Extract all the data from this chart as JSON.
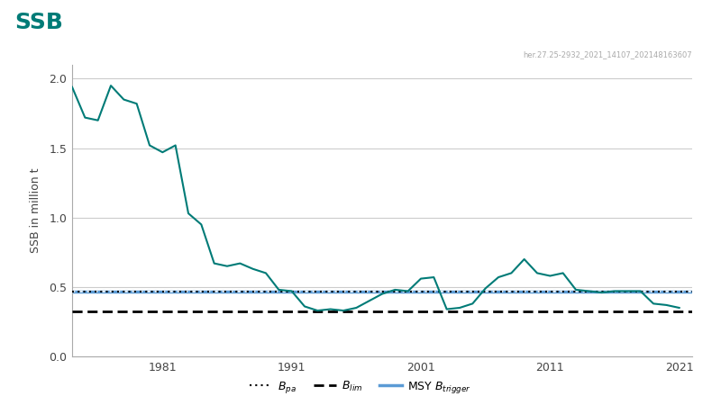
{
  "title": "SSB",
  "title_color": "#007B77",
  "watermark": "her.27.25-2932_2021_14107_202148163607",
  "ylabel": "SSB in million t",
  "background_color": "#ffffff",
  "plot_bg_color": "#ffffff",
  "grid_color": "#cccccc",
  "xlim": [
    1974,
    2022
  ],
  "ylim": [
    0,
    2.1
  ],
  "yticks": [
    0,
    0.5,
    1.0,
    1.5,
    2.0
  ],
  "xticks": [
    1981,
    1991,
    2001,
    2011,
    2021
  ],
  "B_pa": 0.465,
  "B_lim": 0.325,
  "MSY_Btrigger": 0.465,
  "years": [
    1974,
    1975,
    1976,
    1977,
    1978,
    1979,
    1980,
    1981,
    1982,
    1983,
    1984,
    1985,
    1986,
    1987,
    1988,
    1989,
    1990,
    1991,
    1992,
    1993,
    1994,
    1995,
    1996,
    1997,
    1998,
    1999,
    2000,
    2001,
    2002,
    2003,
    2004,
    2005,
    2006,
    2007,
    2008,
    2009,
    2010,
    2011,
    2012,
    2013,
    2014,
    2015,
    2016,
    2017,
    2018,
    2019,
    2020,
    2021
  ],
  "ssb": [
    1.94,
    1.72,
    1.7,
    1.95,
    1.85,
    1.82,
    1.52,
    1.47,
    1.52,
    1.03,
    0.95,
    0.67,
    0.65,
    0.67,
    0.63,
    0.6,
    0.48,
    0.47,
    0.36,
    0.33,
    0.34,
    0.33,
    0.35,
    0.4,
    0.45,
    0.48,
    0.47,
    0.56,
    0.57,
    0.34,
    0.35,
    0.38,
    0.49,
    0.57,
    0.6,
    0.7,
    0.6,
    0.58,
    0.6,
    0.48,
    0.47,
    0.46,
    0.47,
    0.47,
    0.47,
    0.38,
    0.37,
    0.35
  ],
  "ssb_color": "#007B77",
  "B_pa_color": "#000000",
  "B_lim_color": "#000000",
  "MSY_color": "#5B9BD5",
  "watermark_color": "#aaaaaa"
}
